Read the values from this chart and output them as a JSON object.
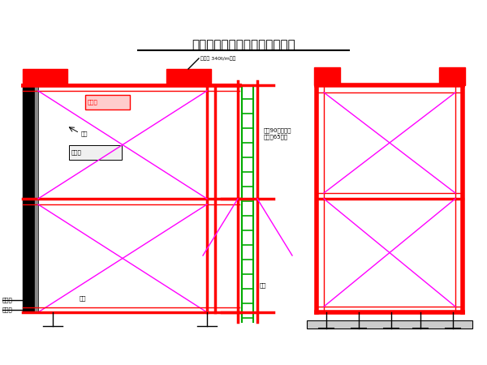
{
  "title": "简易多功能作业台架结构示意图",
  "bg_color": "#ffffff",
  "red": "#ff0000",
  "black": "#000000",
  "magenta": "#ff00ff",
  "green": "#00aa00",
  "label_fontsize": 5.5,
  "title_fontsize": 11,
  "annotations": {
    "water_distributor": "分水箱",
    "air_distributor": "分风箱",
    "ladder": "爬梯",
    "base": "底架",
    "water_pipe": "通水管",
    "air_pipe": "通风管",
    "crane": "小型内 340t/m轻机",
    "steel_pipe": "直管90钢管，内\n装直径65钢管",
    "support": "斜撑"
  }
}
